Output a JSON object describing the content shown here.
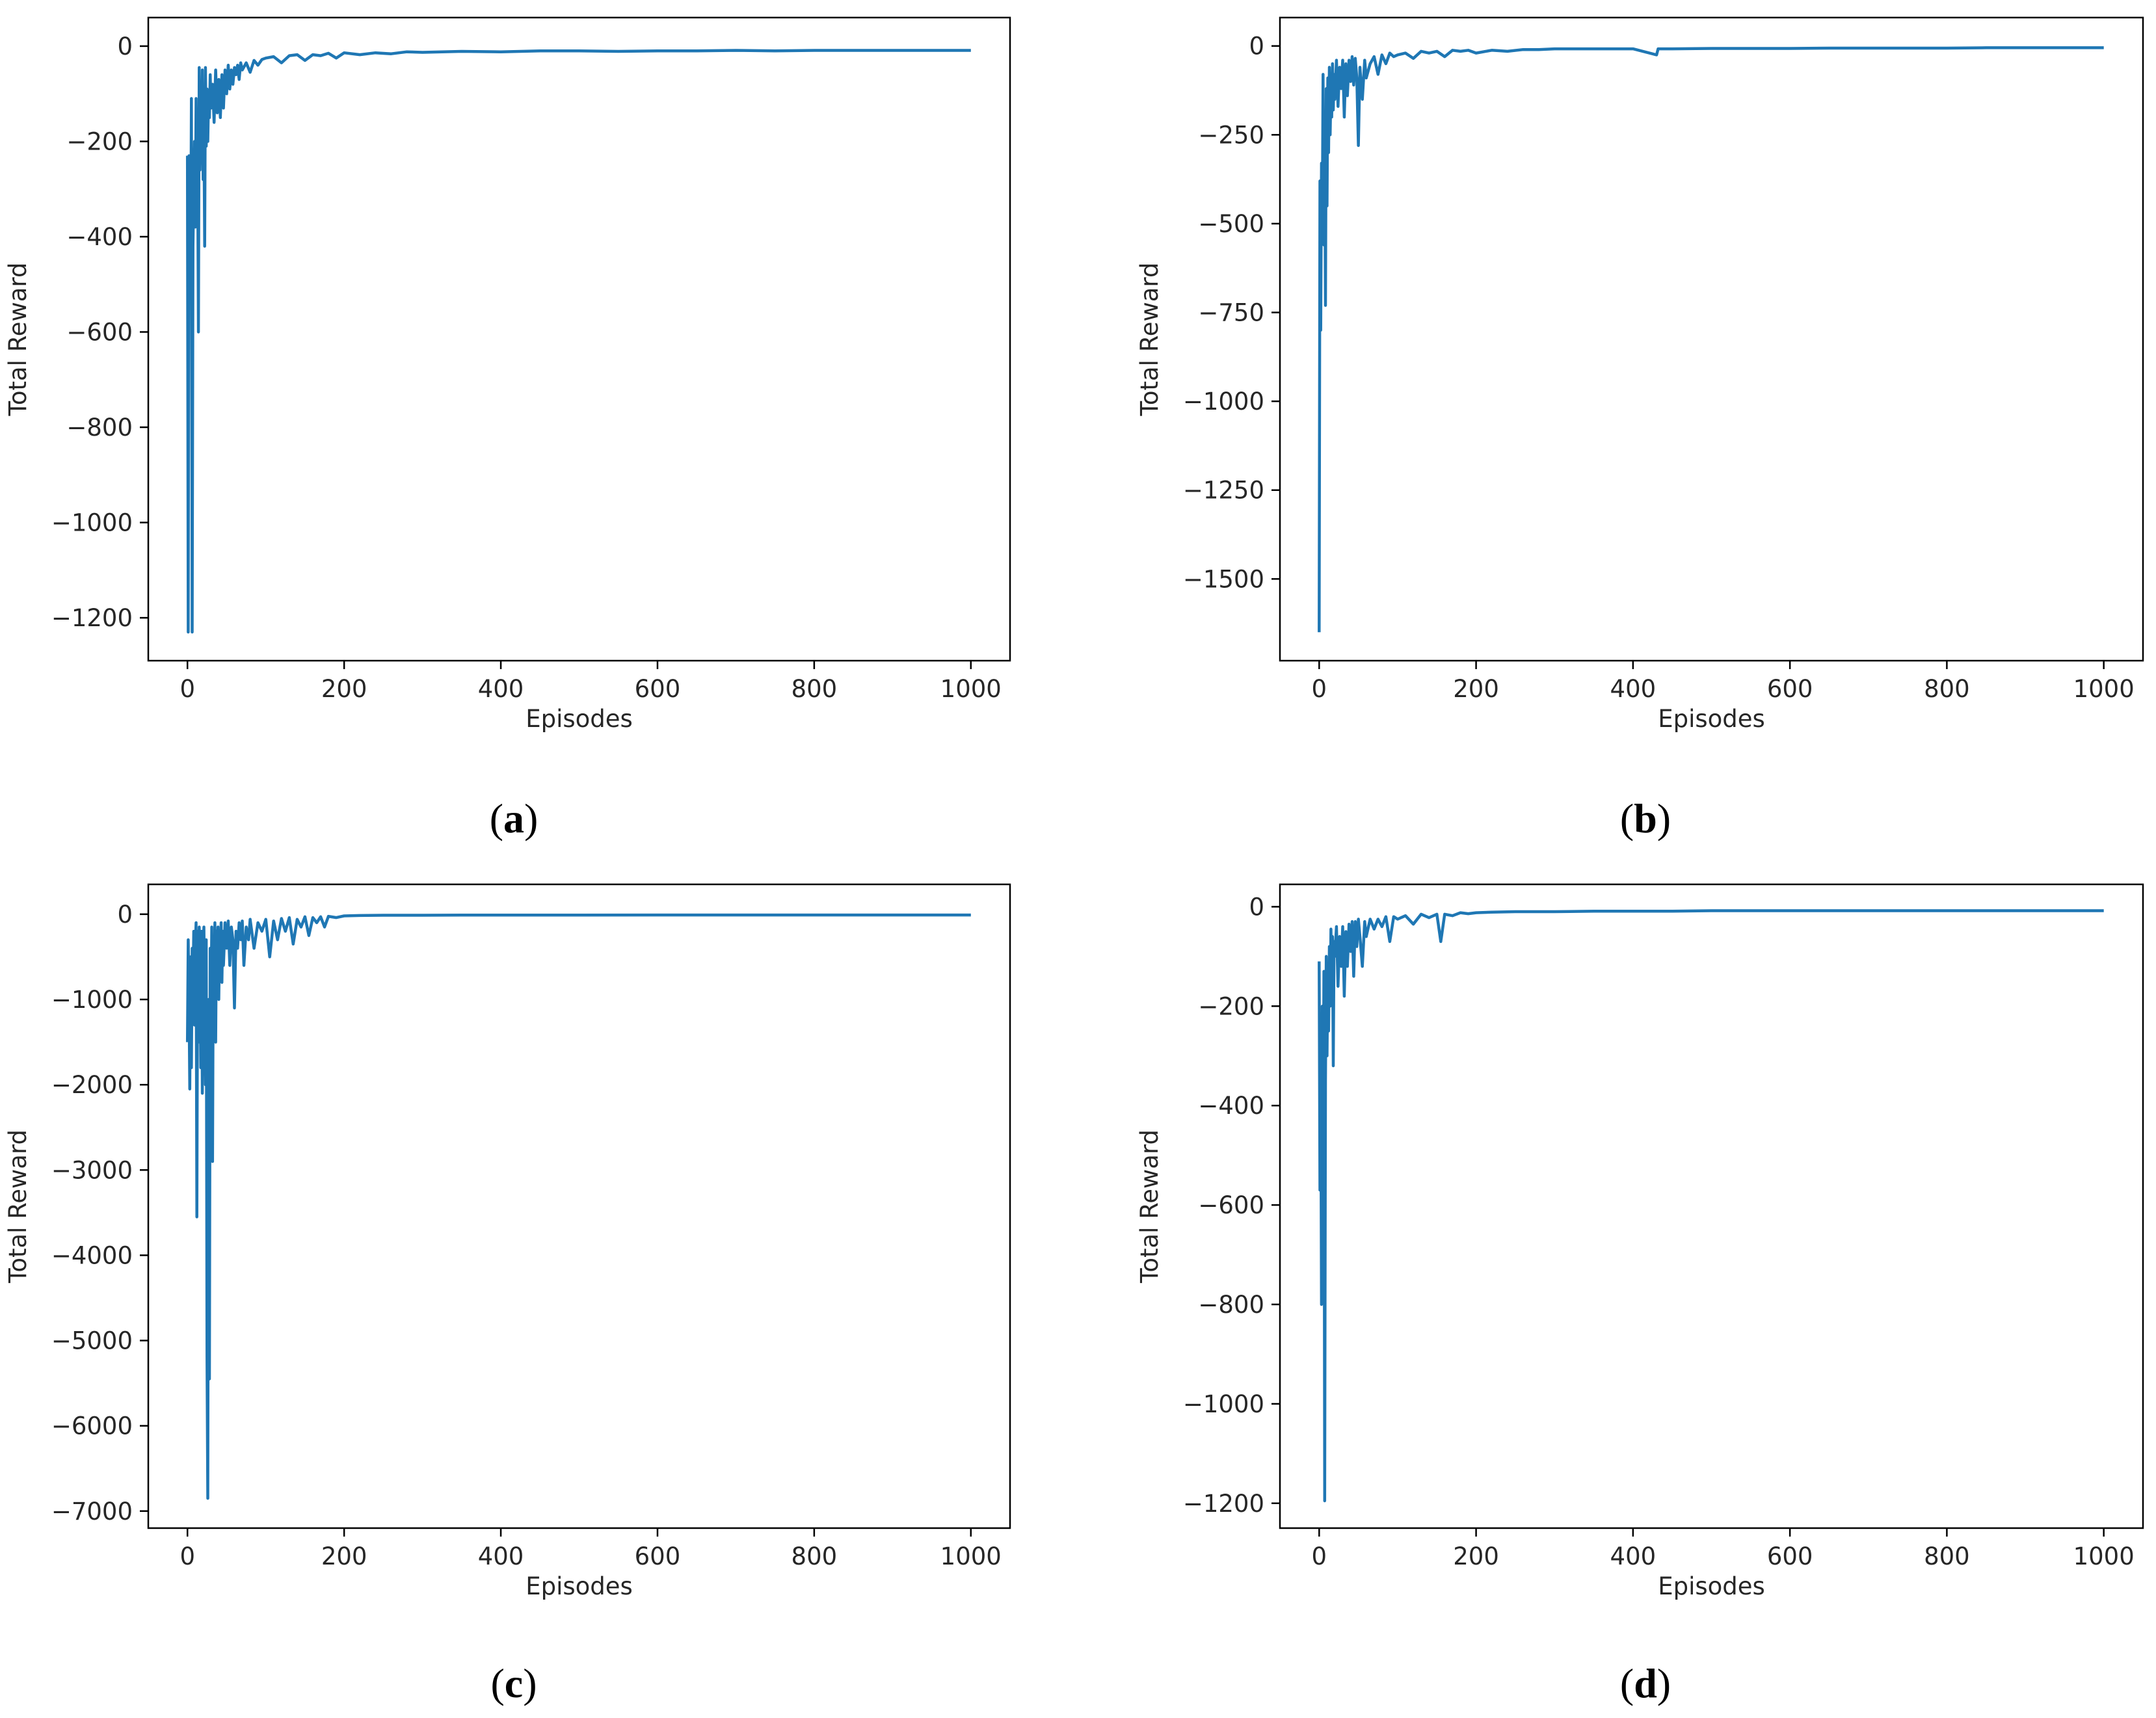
{
  "figure": {
    "line_color": "#1f77b4",
    "axes_color": "#000000"
  },
  "chart_data": [
    {
      "type": "line",
      "panel_label": "a",
      "xlabel": "Episodes",
      "ylabel": "Total Reward",
      "xlim": [
        -50,
        1050
      ],
      "ylim": [
        -1290,
        60
      ],
      "xticks": [
        0,
        200,
        400,
        600,
        800,
        1000
      ],
      "yticks": [
        0,
        -200,
        -400,
        -600,
        -800,
        -1000,
        -1200
      ],
      "grid": false,
      "series": [
        {
          "color": "#1f77b4",
          "x": [
            0,
            1,
            2,
            3,
            4,
            5,
            6,
            7,
            8,
            9,
            10,
            11,
            12,
            13,
            14,
            15,
            16,
            17,
            18,
            19,
            20,
            21,
            22,
            23,
            24,
            25,
            26,
            27,
            28,
            29,
            30,
            32,
            34,
            36,
            38,
            40,
            42,
            44,
            46,
            48,
            50,
            52,
            54,
            56,
            58,
            60,
            62,
            64,
            66,
            68,
            70,
            75,
            80,
            85,
            90,
            95,
            100,
            110,
            120,
            130,
            140,
            150,
            160,
            170,
            180,
            190,
            200,
            220,
            240,
            260,
            280,
            300,
            350,
            400,
            450,
            500,
            550,
            600,
            650,
            700,
            750,
            800,
            850,
            900,
            950,
            1000
          ],
          "y": [
            -230,
            -1230,
            -230,
            -350,
            -530,
            -110,
            -1230,
            -420,
            -300,
            -200,
            -380,
            -110,
            -330,
            -250,
            -600,
            -45,
            -260,
            -120,
            -240,
            -50,
            -280,
            -170,
            -420,
            -45,
            -210,
            -90,
            -200,
            -100,
            -150,
            -60,
            -130,
            -80,
            -160,
            -50,
            -140,
            -70,
            -150,
            -60,
            -130,
            -50,
            -100,
            -40,
            -90,
            -50,
            -80,
            -45,
            -60,
            -40,
            -70,
            -35,
            -50,
            -35,
            -55,
            -30,
            -40,
            -28,
            -25,
            -22,
            -35,
            -20,
            -18,
            -30,
            -18,
            -20,
            -15,
            -25,
            -14,
            -18,
            -14,
            -16,
            -12,
            -13,
            -11,
            -12,
            -10,
            -10,
            -11,
            -10,
            -10,
            -9,
            -10,
            -9,
            -9,
            -9,
            -9,
            -9
          ]
        }
      ]
    },
    {
      "type": "line",
      "panel_label": "b",
      "xlabel": "Episodes",
      "ylabel": "Total Reward",
      "xlim": [
        -50,
        1050
      ],
      "ylim": [
        -1730,
        80
      ],
      "xticks": [
        0,
        200,
        400,
        600,
        800,
        1000
      ],
      "yticks": [
        0,
        -250,
        -500,
        -750,
        -1000,
        -1250,
        -1500
      ],
      "grid": false,
      "series": [
        {
          "color": "#1f77b4",
          "x": [
            0,
            1,
            2,
            3,
            4,
            5,
            6,
            7,
            8,
            9,
            10,
            11,
            12,
            13,
            14,
            15,
            16,
            17,
            18,
            19,
            20,
            22,
            24,
            26,
            28,
            30,
            32,
            34,
            36,
            38,
            40,
            42,
            44,
            46,
            48,
            50,
            52,
            55,
            58,
            60,
            65,
            70,
            75,
            80,
            85,
            90,
            95,
            100,
            110,
            120,
            130,
            140,
            150,
            160,
            170,
            180,
            190,
            200,
            220,
            240,
            260,
            280,
            300,
            350,
            400,
            430,
            432,
            450,
            500,
            550,
            600,
            650,
            700,
            750,
            800,
            850,
            900,
            950,
            1000
          ],
          "y": [
            -1650,
            -380,
            -800,
            -330,
            -500,
            -80,
            -560,
            -200,
            -730,
            -120,
            -450,
            -90,
            -300,
            -60,
            -250,
            -120,
            -200,
            -50,
            -180,
            -80,
            -150,
            -40,
            -170,
            -60,
            -120,
            -40,
            -200,
            -50,
            -140,
            -40,
            -100,
            -30,
            -110,
            -35,
            -90,
            -280,
            -60,
            -150,
            -40,
            -90,
            -50,
            -30,
            -80,
            -25,
            -50,
            -20,
            -30,
            -25,
            -20,
            -35,
            -15,
            -20,
            -15,
            -30,
            -12,
            -15,
            -12,
            -20,
            -12,
            -15,
            -10,
            -10,
            -8,
            -8,
            -8,
            -25,
            -8,
            -8,
            -7,
            -7,
            -7,
            -6,
            -6,
            -6,
            -6,
            -5,
            -5,
            -5,
            -5
          ]
        }
      ]
    },
    {
      "type": "line",
      "panel_label": "c",
      "xlabel": "Episodes",
      "ylabel": "Total Reward",
      "xlim": [
        -50,
        1050
      ],
      "ylim": [
        -7200,
        350
      ],
      "xticks": [
        0,
        200,
        400,
        600,
        800,
        1000
      ],
      "yticks": [
        0,
        -1000,
        -2000,
        -3000,
        -4000,
        -5000,
        -6000,
        -7000
      ],
      "grid": false,
      "series": [
        {
          "color": "#1f77b4",
          "x": [
            0,
            1,
            2,
            3,
            4,
            5,
            6,
            7,
            8,
            9,
            10,
            11,
            12,
            13,
            14,
            15,
            16,
            17,
            18,
            19,
            20,
            21,
            22,
            23,
            24,
            25,
            26,
            27,
            28,
            29,
            30,
            31,
            32,
            33,
            34,
            35,
            36,
            37,
            38,
            39,
            40,
            41,
            42,
            43,
            44,
            45,
            46,
            48,
            50,
            52,
            54,
            56,
            58,
            60,
            62,
            64,
            66,
            68,
            70,
            72,
            75,
            78,
            80,
            85,
            90,
            95,
            100,
            105,
            110,
            115,
            120,
            125,
            130,
            135,
            140,
            145,
            150,
            155,
            160,
            165,
            170,
            175,
            180,
            190,
            200,
            220,
            250,
            300,
            350,
            400,
            500,
            600,
            700,
            800,
            900,
            1000
          ],
          "y": [
            -1500,
            -300,
            -1000,
            -2050,
            -500,
            -1800,
            -400,
            -900,
            -200,
            -1300,
            -400,
            -100,
            -3550,
            -200,
            -1500,
            -150,
            -600,
            -1800,
            -200,
            -2100,
            -400,
            -150,
            -1000,
            -2000,
            -300,
            -5200,
            -6850,
            -1000,
            -5450,
            -400,
            -1200,
            -150,
            -2900,
            -300,
            -800,
            -100,
            -1500,
            -200,
            -600,
            -150,
            -1000,
            -300,
            -500,
            -100,
            -800,
            -200,
            -600,
            -100,
            -400,
            -80,
            -600,
            -150,
            -300,
            -1100,
            -200,
            -400,
            -100,
            -300,
            -80,
            -600,
            -150,
            -300,
            -60,
            -400,
            -100,
            -200,
            -60,
            -500,
            -80,
            -300,
            -50,
            -200,
            -40,
            -350,
            -60,
            -150,
            -30,
            -250,
            -40,
            -100,
            -30,
            -150,
            -25,
            -40,
            -20,
            -15,
            -12,
            -12,
            -10,
            -10,
            -10,
            -9,
            -9,
            -9,
            -9,
            -9
          ]
        }
      ]
    },
    {
      "type": "line",
      "panel_label": "d",
      "xlabel": "Episodes",
      "ylabel": "Total Reward",
      "xlim": [
        -50,
        1050
      ],
      "ylim": [
        -1250,
        45
      ],
      "xticks": [
        0,
        200,
        400,
        600,
        800,
        1000
      ],
      "yticks": [
        0,
        -200,
        -400,
        -600,
        -800,
        -1000,
        -1200
      ],
      "grid": false,
      "series": [
        {
          "color": "#1f77b4",
          "x": [
            0,
            1,
            2,
            3,
            4,
            5,
            6,
            7,
            8,
            9,
            10,
            11,
            12,
            13,
            14,
            15,
            16,
            17,
            18,
            19,
            20,
            22,
            24,
            26,
            28,
            30,
            32,
            34,
            36,
            38,
            40,
            42,
            44,
            46,
            48,
            50,
            52,
            55,
            58,
            60,
            65,
            70,
            75,
            80,
            85,
            90,
            95,
            100,
            110,
            120,
            130,
            140,
            150,
            155,
            160,
            170,
            180,
            190,
            200,
            220,
            250,
            300,
            350,
            400,
            450,
            500,
            550,
            600,
            650,
            700,
            750,
            800,
            850,
            900,
            950,
            1000
          ],
          "y": [
            -110,
            -570,
            -300,
            -800,
            -200,
            -560,
            -130,
            -1195,
            -350,
            -100,
            -300,
            -130,
            -250,
            -80,
            -200,
            -45,
            -150,
            -60,
            -320,
            -70,
            -100,
            -40,
            -160,
            -60,
            -120,
            -40,
            -180,
            -50,
            -120,
            -35,
            -90,
            -30,
            -140,
            -30,
            -80,
            -25,
            -60,
            -120,
            -30,
            -60,
            -25,
            -45,
            -25,
            -40,
            -20,
            -70,
            -20,
            -25,
            -18,
            -35,
            -15,
            -22,
            -15,
            -70,
            -15,
            -18,
            -12,
            -14,
            -12,
            -11,
            -10,
            -10,
            -9,
            -9,
            -9,
            -8,
            -8,
            -8,
            -8,
            -8,
            -8,
            -8,
            -8,
            -8,
            -8,
            -8
          ]
        }
      ]
    }
  ]
}
